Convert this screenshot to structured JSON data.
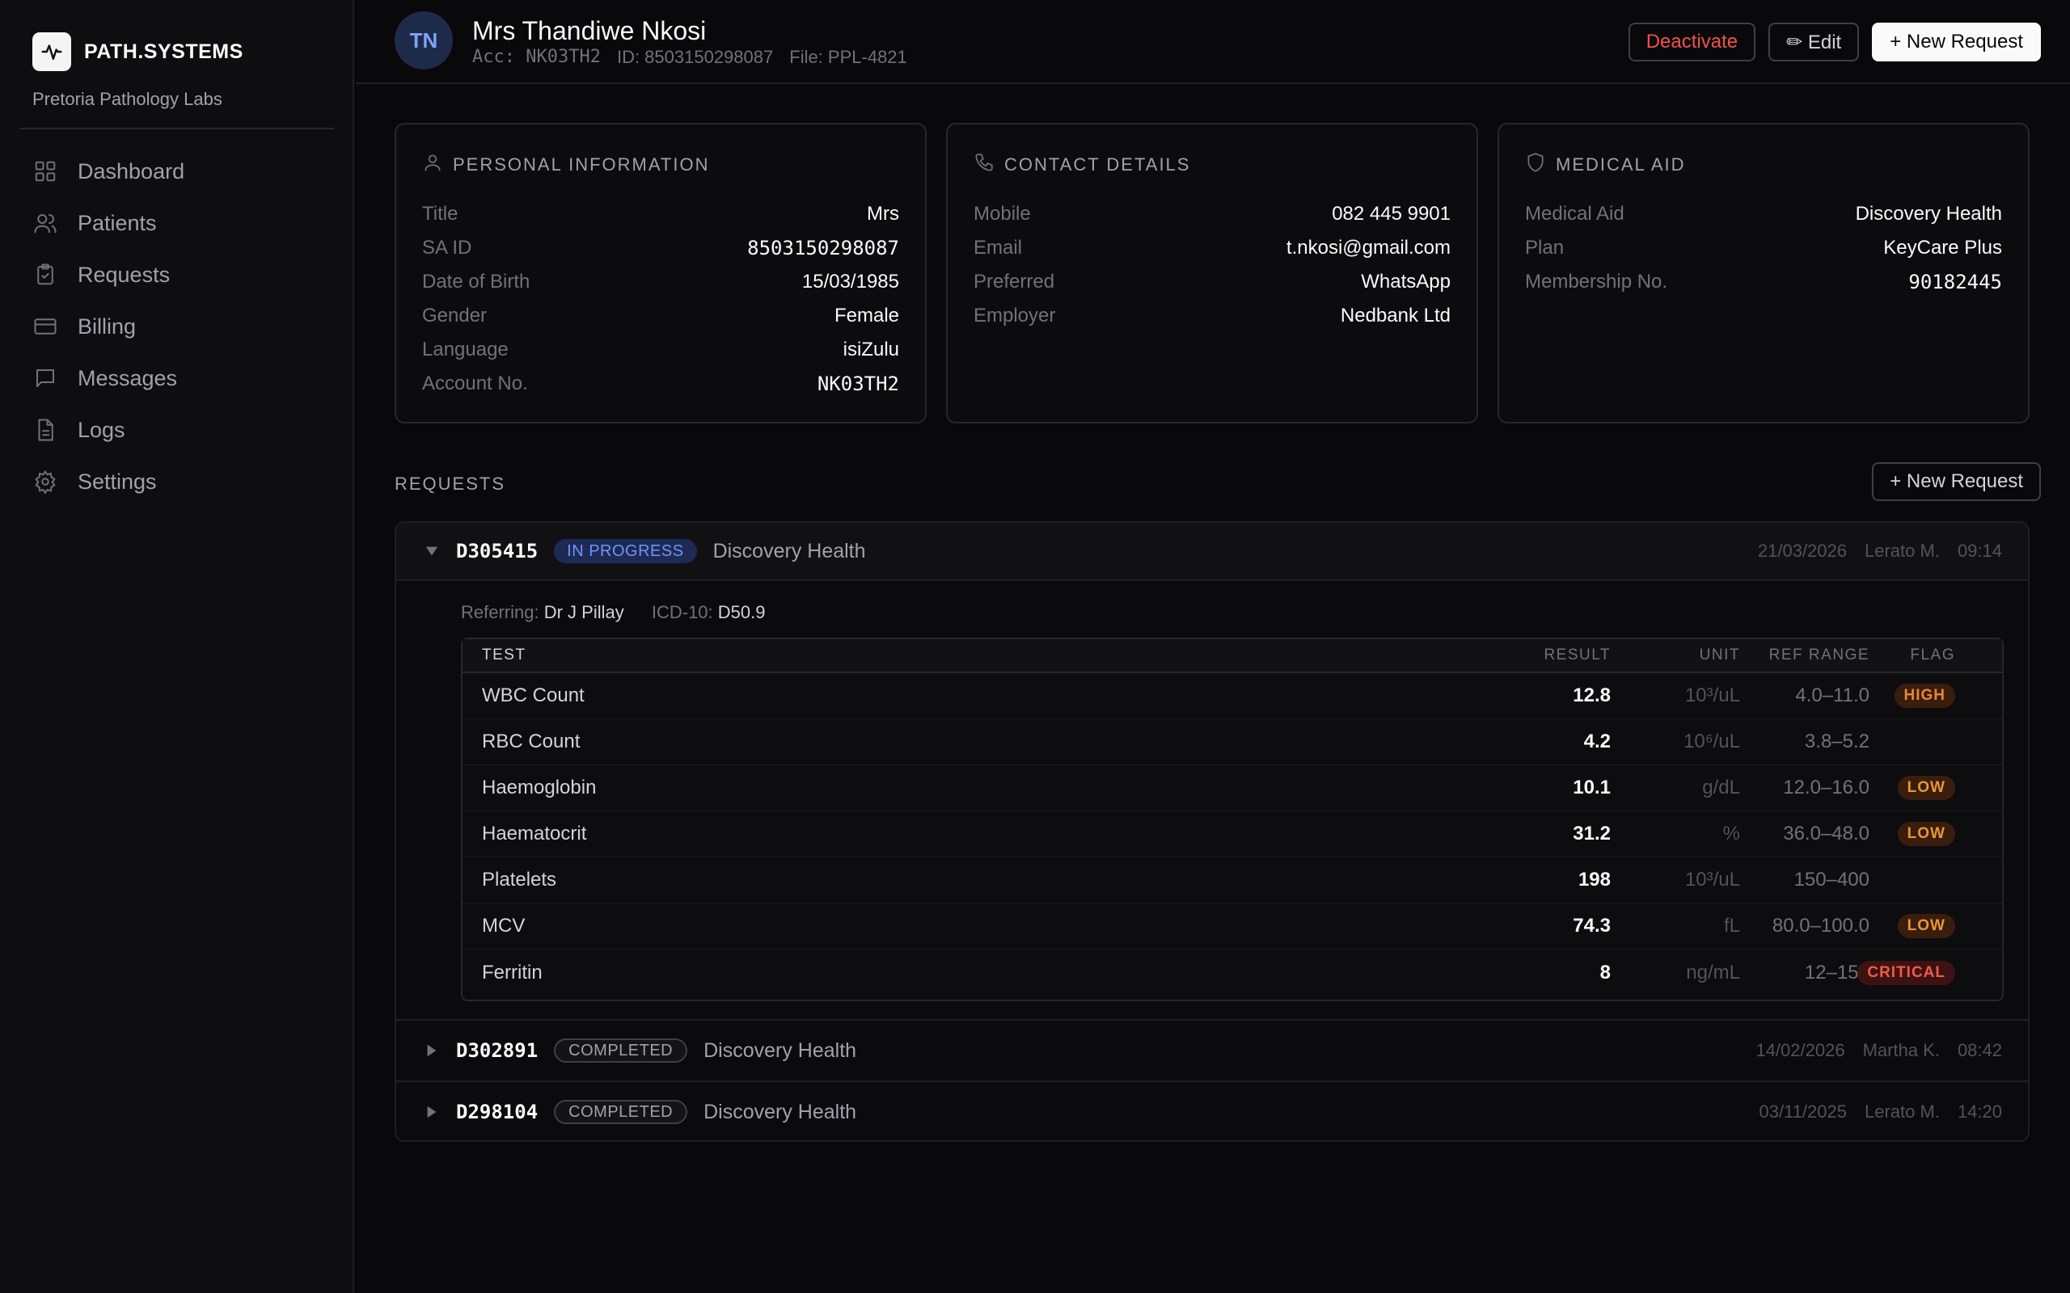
{
  "brand": {
    "name": "PATH.SYSTEMS",
    "org": "Pretoria Pathology Labs"
  },
  "nav": [
    {
      "label": "Dashboard",
      "icon": "grid-icon"
    },
    {
      "label": "Patients",
      "icon": "users-icon"
    },
    {
      "label": "Requests",
      "icon": "clipboard-icon"
    },
    {
      "label": "Billing",
      "icon": "card-icon"
    },
    {
      "label": "Messages",
      "icon": "message-icon"
    },
    {
      "label": "Logs",
      "icon": "file-icon"
    },
    {
      "label": "Settings",
      "icon": "gear-icon"
    }
  ],
  "header": {
    "initials": "TN",
    "name": "Mrs Thandiwe Nkosi",
    "acc": "Acc: NK03TH2",
    "id": "ID: 8503150298087",
    "file": "File: PPL-4821",
    "deactivate_label": "Deactivate",
    "edit_label": "✏ Edit",
    "new_request_label": "+ New Request"
  },
  "personal": {
    "title": "PERSONAL INFORMATION",
    "rows": [
      {
        "k": "Title",
        "v": "Mrs"
      },
      {
        "k": "SA ID",
        "v": "8503150298087"
      },
      {
        "k": "Date of Birth",
        "v": "15/03/1985"
      },
      {
        "k": "Gender",
        "v": "Female"
      },
      {
        "k": "Language",
        "v": "isiZulu"
      },
      {
        "k": "Account No.",
        "v": "NK03TH2"
      }
    ]
  },
  "contact": {
    "title": "CONTACT DETAILS",
    "rows": [
      {
        "k": "Mobile",
        "v": "082 445 9901"
      },
      {
        "k": "Email",
        "v": "t.nkosi@gmail.com"
      },
      {
        "k": "Preferred",
        "v": "WhatsApp"
      },
      {
        "k": "Employer",
        "v": "Nedbank Ltd"
      }
    ]
  },
  "medical": {
    "title": "MEDICAL AID",
    "rows": [
      {
        "k": "Medical Aid",
        "v": "Discovery Health"
      },
      {
        "k": "Plan",
        "v": "KeyCare Plus"
      },
      {
        "k": "Membership No.",
        "v": "90182445"
      }
    ]
  },
  "requests": {
    "label": "REQUESTS",
    "new_label": "+ New Request",
    "expanded": {
      "id": "D305415",
      "status": "IN PROGRESS",
      "aid": "Discovery Health",
      "date": "21/03/2026",
      "user": "Lerato M.",
      "time": "09:14",
      "referring_label": "Referring:",
      "referring": "Dr J Pillay",
      "icd_label": "ICD-10:",
      "icd": "D50.9",
      "columns": {
        "test": "TEST",
        "result": "RESULT",
        "unit": "UNIT",
        "ref": "REF RANGE",
        "flag": "FLAG"
      },
      "results": [
        {
          "test": "WBC Count",
          "result": "12.8",
          "unit": "10³/uL",
          "ref": "4.0–11.0",
          "flag": "HIGH"
        },
        {
          "test": "RBC Count",
          "result": "4.2",
          "unit": "10⁶/uL",
          "ref": "3.8–5.2",
          "flag": ""
        },
        {
          "test": "Haemoglobin",
          "result": "10.1",
          "unit": "g/dL",
          "ref": "12.0–16.0",
          "flag": "LOW"
        },
        {
          "test": "Haematocrit",
          "result": "31.2",
          "unit": "%",
          "ref": "36.0–48.0",
          "flag": "LOW"
        },
        {
          "test": "Platelets",
          "result": "198",
          "unit": "10³/uL",
          "ref": "150–400",
          "flag": ""
        },
        {
          "test": "MCV",
          "result": "74.3",
          "unit": "fL",
          "ref": "80.0–100.0",
          "flag": "LOW"
        },
        {
          "test": "Ferritin",
          "result": "8",
          "unit": "ng/mL",
          "ref": "12–150",
          "flag": "CRITICAL"
        }
      ]
    },
    "collapsed": [
      {
        "id": "D302891",
        "status": "COMPLETED",
        "aid": "Discovery Health",
        "date": "14/02/2026",
        "user": "Martha K.",
        "time": "08:42"
      },
      {
        "id": "D298104",
        "status": "COMPLETED",
        "aid": "Discovery Health",
        "date": "03/11/2025",
        "user": "Lerato M.",
        "time": "14:20"
      }
    ]
  },
  "colors": {
    "accent": "#6e95f5",
    "danger": "#f0524a",
    "warning": "#e8853b",
    "background": "#09090b"
  }
}
